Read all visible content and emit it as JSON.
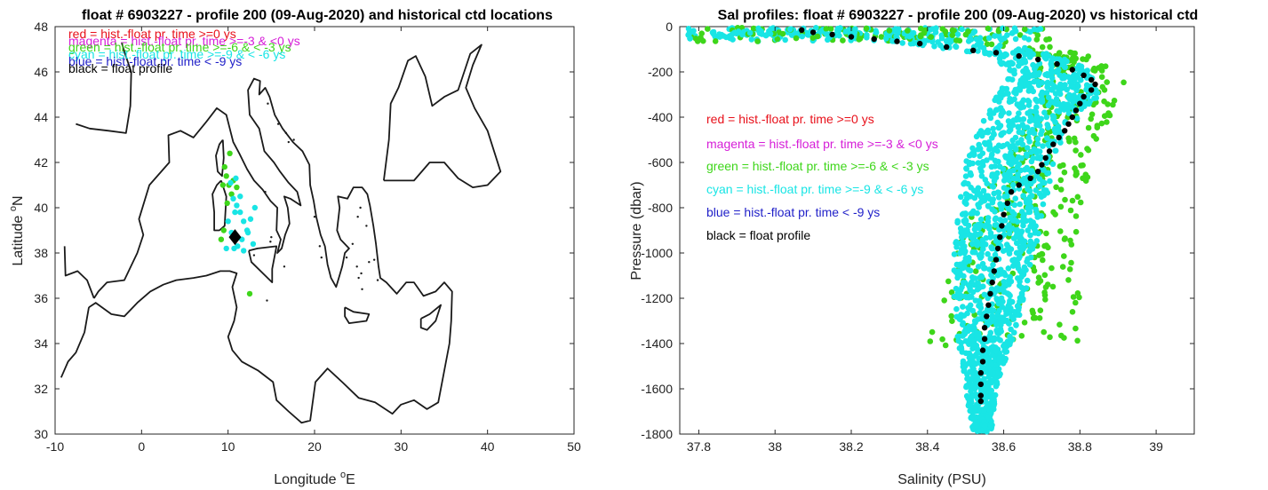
{
  "colors": {
    "red": "#e8101a",
    "magenta": "#d61ed8",
    "green": "#3ed61a",
    "cyan": "#19e5e5",
    "blue": "#1f1fc8",
    "black": "#000000",
    "coast": "#1a1a1a"
  },
  "chart_data": [
    {
      "type": "scatter",
      "title": "float # 6903227 - profile 200 (09-Aug-2020) and historical ctd locations",
      "xlabel": "Longitude",
      "xlabel_sup": "o",
      "xlabel_unit": "E",
      "ylabel": "Latitude",
      "ylabel_sup": "o",
      "ylabel_unit": "N",
      "xlim": [
        -10,
        50
      ],
      "ylim": [
        30,
        48
      ],
      "xticks": [
        -10,
        0,
        10,
        20,
        30,
        40,
        50
      ],
      "yticks": [
        30,
        32,
        34,
        36,
        38,
        40,
        42,
        44,
        46,
        48
      ],
      "legend": [
        {
          "text": "red = hist.-float pr. time >=0 ys",
          "color": "red"
        },
        {
          "text": "magenta = hist.-float pr. time >=-3 & <0 ys",
          "color": "magenta"
        },
        {
          "text": "green = hist.-float pr. time >=-6 & < -3 ys",
          "color": "green"
        },
        {
          "text": "cyan = hist.-float pr. time >=-9 & < -6 ys",
          "color": "cyan"
        },
        {
          "text": "blue = hist.-float pr. time < -9 ys",
          "color": "blue"
        },
        {
          "text": "black = float profile",
          "color": "black"
        }
      ],
      "legend_placement": "top-left",
      "float_position": {
        "lon": 10.8,
        "lat": 38.7,
        "marker": "diamond"
      },
      "series": [
        {
          "color": "green",
          "points": [
            [
              9.6,
              41.8
            ],
            [
              9.8,
              41.4
            ],
            [
              10.1,
              41.0
            ],
            [
              10.4,
              40.6
            ],
            [
              9.5,
              39.0
            ],
            [
              9.2,
              38.6
            ],
            [
              10.2,
              42.4
            ],
            [
              12.5,
              36.2
            ],
            [
              9.9,
              40.2
            ],
            [
              10.6,
              41.2
            ],
            [
              11.0,
              40.9
            ],
            [
              9.4,
              41.0
            ]
          ]
        },
        {
          "color": "cyan",
          "points": [
            [
              10.6,
              40.4
            ],
            [
              11.0,
              40.1
            ],
            [
              11.4,
              39.8
            ],
            [
              11.8,
              39.4
            ],
            [
              12.2,
              39.0
            ],
            [
              12.6,
              39.5
            ],
            [
              11.6,
              38.6
            ],
            [
              11.1,
              38.3
            ],
            [
              10.4,
              38.9
            ],
            [
              10.0,
              39.4
            ],
            [
              9.8,
              38.2
            ],
            [
              10.8,
              39.8
            ],
            [
              12.9,
              38.4
            ],
            [
              13.1,
              40.0
            ],
            [
              11.4,
              40.5
            ],
            [
              10.9,
              41.3
            ],
            [
              10.3,
              41.1
            ],
            [
              10.7,
              38.2
            ],
            [
              11.8,
              38.1
            ],
            [
              12.3,
              38.9
            ]
          ]
        }
      ]
    },
    {
      "type": "scatter",
      "title": "Sal profiles: float # 6903227 - profile 200 (09-Aug-2020) vs historical ctd",
      "xlabel": "Salinity (PSU)",
      "ylabel": "Pressure (dbar)",
      "xlim": [
        37.75,
        39.1
      ],
      "ylim": [
        -1800,
        0
      ],
      "xticks": [
        37.8,
        38,
        38.2,
        38.4,
        38.6,
        38.8,
        39
      ],
      "yticks": [
        0,
        -200,
        -400,
        -600,
        -800,
        -1000,
        -1200,
        -1400,
        -1600,
        -1800
      ],
      "legend": [
        {
          "text": "red = hist.-float pr. time >=0 ys",
          "color": "red"
        },
        {
          "text": "magenta = hist.-float pr. time >=-3 & <0 ys",
          "color": "magenta"
        },
        {
          "text": "green = hist.-float pr. time >=-6 & < -3 ys",
          "color": "green"
        },
        {
          "text": "cyan = hist.-float pr. time >=-9 & < -6 ys",
          "color": "cyan"
        },
        {
          "text": "blue = hist.-float pr. time < -9 ys",
          "color": "blue"
        },
        {
          "text": "black = float profile",
          "color": "black"
        }
      ],
      "legend_placement": "center-left",
      "float_profile": [
        [
          38.07,
          -15
        ],
        [
          38.1,
          -25
        ],
        [
          38.15,
          -35
        ],
        [
          38.2,
          -45
        ],
        [
          38.26,
          -55
        ],
        [
          38.32,
          -65
        ],
        [
          38.38,
          -75
        ],
        [
          38.45,
          -90
        ],
        [
          38.52,
          -105
        ],
        [
          38.58,
          -115
        ],
        [
          38.64,
          -130
        ],
        [
          38.69,
          -145
        ],
        [
          38.74,
          -165
        ],
        [
          38.78,
          -190
        ],
        [
          38.81,
          -215
        ],
        [
          38.83,
          -235
        ],
        [
          38.84,
          -255
        ],
        [
          38.83,
          -280
        ],
        [
          38.81,
          -310
        ],
        [
          38.8,
          -340
        ],
        [
          38.79,
          -370
        ],
        [
          38.78,
          -400
        ],
        [
          38.77,
          -430
        ],
        [
          38.76,
          -460
        ],
        [
          38.745,
          -490
        ],
        [
          38.73,
          -520
        ],
        [
          38.72,
          -550
        ],
        [
          38.71,
          -580
        ],
        [
          38.7,
          -610
        ],
        [
          38.69,
          -640
        ],
        [
          38.67,
          -670
        ],
        [
          38.64,
          -700
        ],
        [
          38.62,
          -730
        ],
        [
          38.61,
          -780
        ],
        [
          38.6,
          -830
        ],
        [
          38.595,
          -880
        ],
        [
          38.59,
          -930
        ],
        [
          38.585,
          -980
        ],
        [
          38.58,
          -1030
        ],
        [
          38.575,
          -1080
        ],
        [
          38.57,
          -1130
        ],
        [
          38.565,
          -1180
        ],
        [
          38.56,
          -1230
        ],
        [
          38.555,
          -1280
        ],
        [
          38.55,
          -1330
        ],
        [
          38.55,
          -1380
        ],
        [
          38.545,
          -1430
        ],
        [
          38.545,
          -1480
        ],
        [
          38.54,
          -1530
        ],
        [
          38.54,
          -1580
        ],
        [
          38.54,
          -1630
        ],
        [
          38.54,
          -1655
        ]
      ],
      "green_envelope_left": [
        [
          37.78,
          -5
        ],
        [
          37.85,
          -20
        ],
        [
          38.1,
          -40
        ],
        [
          38.3,
          -60
        ],
        [
          38.55,
          -85
        ],
        [
          38.65,
          -100
        ],
        [
          38.7,
          -130
        ],
        [
          38.68,
          -300
        ],
        [
          38.66,
          -420
        ],
        [
          38.62,
          -550
        ],
        [
          38.55,
          -700
        ],
        [
          38.5,
          -900
        ],
        [
          38.45,
          -1100
        ],
        [
          38.42,
          -1300
        ],
        [
          38.4,
          -1420
        ]
      ],
      "green_envelope_right": [
        [
          38.05,
          -5
        ],
        [
          38.4,
          -30
        ],
        [
          38.7,
          -70
        ],
        [
          38.88,
          -160
        ],
        [
          38.92,
          -250
        ],
        [
          38.9,
          -340
        ],
        [
          38.86,
          -450
        ],
        [
          38.83,
          -560
        ],
        [
          38.82,
          -700
        ],
        [
          38.8,
          -800
        ]
      ],
      "cyan_envelope_left": [
        [
          37.78,
          -5
        ],
        [
          37.9,
          -25
        ],
        [
          38.1,
          -45
        ],
        [
          38.35,
          -75
        ],
        [
          38.55,
          -120
        ],
        [
          38.62,
          -200
        ],
        [
          38.55,
          -400
        ],
        [
          38.5,
          -600
        ],
        [
          38.48,
          -800
        ],
        [
          38.47,
          -1000
        ],
        [
          38.47,
          -1200
        ],
        [
          38.48,
          -1400
        ],
        [
          38.5,
          -1600
        ],
        [
          38.52,
          -1790
        ]
      ],
      "cyan_envelope_right": [
        [
          38.1,
          -5
        ],
        [
          38.4,
          -40
        ],
        [
          38.65,
          -90
        ],
        [
          38.8,
          -160
        ],
        [
          38.86,
          -240
        ],
        [
          38.84,
          -330
        ],
        [
          38.78,
          -430
        ],
        [
          38.74,
          -550
        ],
        [
          38.72,
          -700
        ],
        [
          38.7,
          -850
        ],
        [
          38.68,
          -1000
        ],
        [
          38.66,
          -1150
        ],
        [
          38.64,
          -1300
        ],
        [
          38.61,
          -1450
        ],
        [
          38.58,
          -1600
        ],
        [
          38.57,
          -1790
        ]
      ]
    }
  ]
}
